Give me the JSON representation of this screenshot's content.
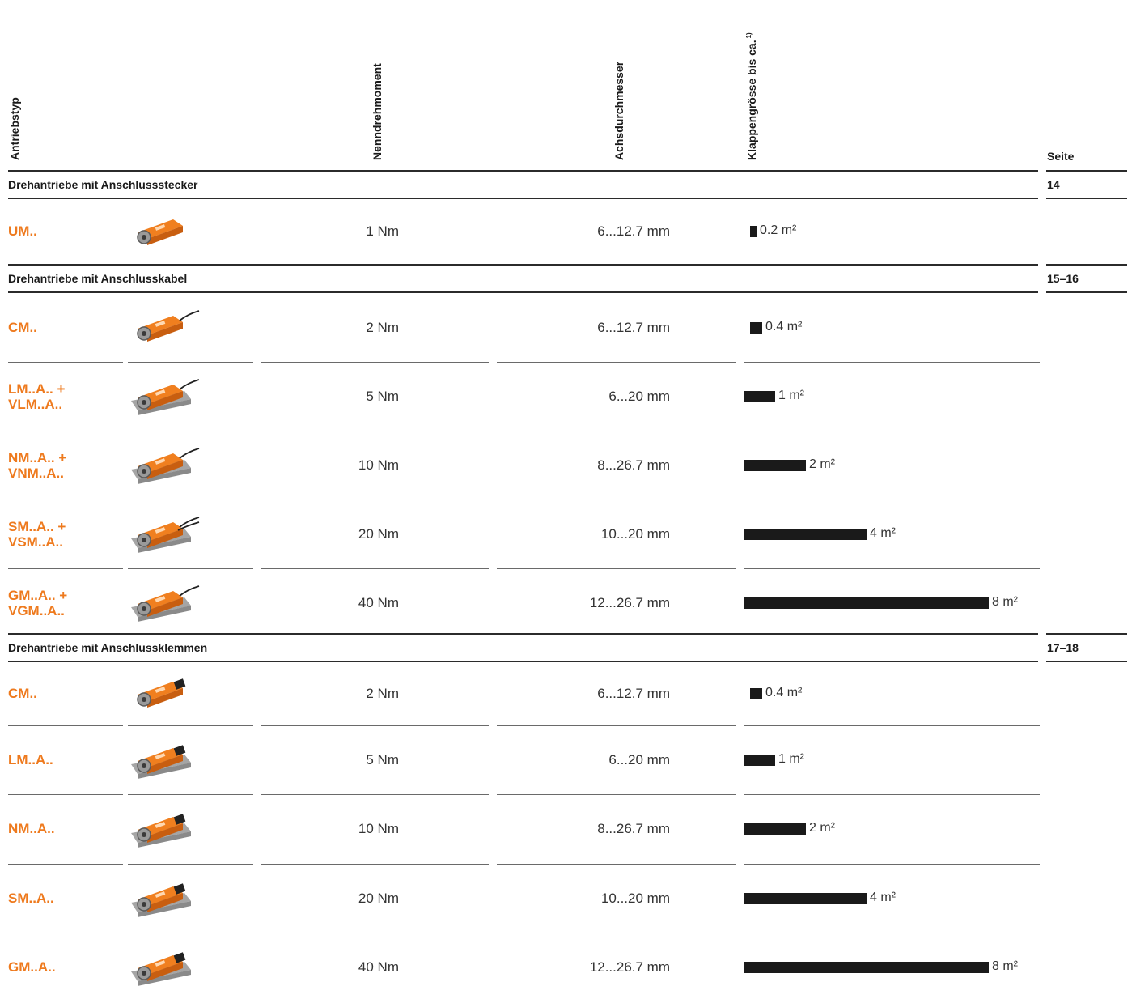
{
  "columns": {
    "type": "Antriebstyp",
    "torque": "Nenndrehmoment",
    "axis": "Achsdurchmesser",
    "damper": "Klappengrösse bis ca.",
    "damper_footnote": "1)",
    "page": "Seite"
  },
  "sections": [
    {
      "title": "Drehantriebe mit Anschlussstecker",
      "page": "14",
      "rows": [
        {
          "code": "UM..",
          "icon": "actuator-plug-icon",
          "torque": "1 Nm",
          "axis": "6...12.7 mm",
          "area_value": 0.2,
          "area": "0.2 m²"
        }
      ]
    },
    {
      "title": "Drehantriebe mit Anschlusskabel",
      "page": "15–16",
      "rows": [
        {
          "code": "CM..",
          "icon": "actuator-cable-icon",
          "torque": "2 Nm",
          "axis": "6...12.7 mm",
          "area_value": 0.4,
          "area": "0.4 m²"
        },
        {
          "code": "LM..A.. +\nVLM..A..",
          "icon": "actuator-cable-icon",
          "torque": "5 Nm",
          "axis": "6...20 mm",
          "area_value": 1,
          "area": "1 m²"
        },
        {
          "code": "NM..A.. +\nVNM..A..",
          "icon": "actuator-cable-icon",
          "torque": "10 Nm",
          "axis": "8...26.7 mm",
          "area_value": 2,
          "area": "2 m²"
        },
        {
          "code": "SM..A.. +\nVSM..A..",
          "icon": "actuator-cable-icon",
          "torque": "20 Nm",
          "axis": "10...20 mm",
          "area_value": 4,
          "area": "4 m²"
        },
        {
          "code": "GM..A.. +\nVGM..A..",
          "icon": "actuator-cable-icon",
          "torque": "40 Nm",
          "axis": "12...26.7 mm",
          "area_value": 8,
          "area": "8 m²"
        }
      ]
    },
    {
      "title": "Drehantriebe mit Anschlussklemmen",
      "page": "17–18",
      "rows": [
        {
          "code": "CM..",
          "icon": "actuator-terminal-icon",
          "torque": "2 Nm",
          "axis": "6...12.7 mm",
          "area_value": 0.4,
          "area": "0.4 m²"
        },
        {
          "code": "LM..A..",
          "icon": "actuator-terminal-icon",
          "torque": "5 Nm",
          "axis": "6...20 mm",
          "area_value": 1,
          "area": "1 m²"
        },
        {
          "code": "NM..A..",
          "icon": "actuator-terminal-icon",
          "torque": "10 Nm",
          "axis": "8...26.7 mm",
          "area_value": 2,
          "area": "2 m²"
        },
        {
          "code": "SM..A..",
          "icon": "actuator-terminal-icon",
          "torque": "20 Nm",
          "axis": "10...20 mm",
          "area_value": 4,
          "area": "4 m²"
        },
        {
          "code": "GM..A..",
          "icon": "actuator-terminal-icon",
          "torque": "40 Nm",
          "axis": "12...26.7 mm",
          "area_value": 8,
          "area": "8 m²"
        }
      ]
    }
  ],
  "colors": {
    "code": "#ee7a1e",
    "bar": "#1a1a1a",
    "rule": "#2b2b2b"
  }
}
